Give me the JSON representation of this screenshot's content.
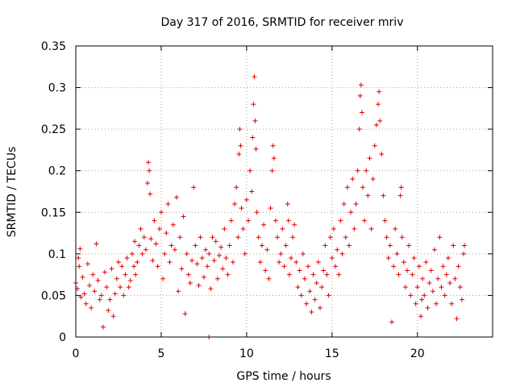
{
  "chart_data": {
    "type": "scatter",
    "title": "Day 317 of 2016, SRMTID for receiver mriv",
    "xlabel": "GPS time / hours",
    "ylabel": "SRMTID / TECUs",
    "xlim": [
      0,
      24.4
    ],
    "ylim": [
      0,
      0.35
    ],
    "x_ticks": [
      0,
      5,
      10,
      15,
      20
    ],
    "x_tick_labels": [
      "0",
      "5",
      "10",
      "15",
      "20"
    ],
    "y_ticks": [
      0,
      0.05,
      0.1,
      0.15,
      0.2,
      0.25,
      0.3,
      0.35
    ],
    "y_tick_labels": [
      "0",
      "0.05",
      "0.1",
      "0.15",
      "0.2",
      "0.25",
      "0.3",
      "0.35"
    ],
    "grid": true,
    "marker": "+",
    "color": "#e00000",
    "series": [
      {
        "name": "SRMTID",
        "points": [
          [
            0.0,
            0.065
          ],
          [
            0.1,
            0.058
          ],
          [
            0.2,
            0.085
          ],
          [
            0.25,
            0.106
          ],
          [
            0.3,
            0.048
          ],
          [
            0.4,
            0.072
          ],
          [
            0.5,
            0.052
          ],
          [
            0.6,
            0.04
          ],
          [
            0.7,
            0.088
          ],
          [
            0.8,
            0.062
          ],
          [
            0.9,
            0.035
          ],
          [
            1.0,
            0.075
          ],
          [
            1.1,
            0.055
          ],
          [
            1.2,
            0.112
          ],
          [
            1.3,
            0.068
          ],
          [
            1.4,
            0.045
          ],
          [
            1.5,
            0.05
          ],
          [
            1.6,
            0.012
          ],
          [
            1.7,
            0.078
          ],
          [
            1.8,
            0.06
          ],
          [
            1.9,
            0.032
          ],
          [
            2.0,
            0.045
          ],
          [
            2.1,
            0.082
          ],
          [
            2.2,
            0.025
          ],
          [
            2.3,
            0.052
          ],
          [
            2.4,
            0.07
          ],
          [
            2.5,
            0.09
          ],
          [
            2.6,
            0.06
          ],
          [
            2.7,
            0.085
          ],
          [
            2.8,
            0.05
          ],
          [
            2.9,
            0.075
          ],
          [
            3.0,
            0.095
          ],
          [
            3.1,
            0.06
          ],
          [
            3.2,
            0.068
          ],
          [
            3.3,
            0.1
          ],
          [
            3.4,
            0.085
          ],
          [
            3.5,
            0.075
          ],
          [
            3.6,
            0.09
          ],
          [
            3.7,
            0.11
          ],
          [
            3.8,
            0.13
          ],
          [
            3.9,
            0.1
          ],
          [
            4.0,
            0.12
          ],
          [
            4.1,
            0.105
          ],
          [
            4.2,
            0.185
          ],
          [
            4.25,
            0.21
          ],
          [
            4.3,
            0.2
          ],
          [
            4.35,
            0.172
          ],
          [
            4.4,
            0.118
          ],
          [
            4.5,
            0.092
          ],
          [
            4.6,
            0.14
          ],
          [
            4.7,
            0.112
          ],
          [
            4.8,
            0.085
          ],
          [
            4.9,
            0.13
          ],
          [
            5.0,
            0.15
          ],
          [
            5.1,
            0.07
          ],
          [
            5.2,
            0.1
          ],
          [
            5.3,
            0.125
          ],
          [
            5.4,
            0.16
          ],
          [
            5.5,
            0.09
          ],
          [
            5.6,
            0.11
          ],
          [
            5.7,
            0.135
          ],
          [
            5.8,
            0.105
          ],
          [
            5.9,
            0.168
          ],
          [
            6.0,
            0.055
          ],
          [
            6.1,
            0.12
          ],
          [
            6.2,
            0.082
          ],
          [
            6.3,
            0.145
          ],
          [
            6.4,
            0.028
          ],
          [
            6.5,
            0.1
          ],
          [
            6.6,
            0.075
          ],
          [
            6.7,
            0.065
          ],
          [
            6.8,
            0.092
          ],
          [
            6.9,
            0.18
          ],
          [
            7.0,
            0.11
          ],
          [
            7.1,
            0.088
          ],
          [
            7.2,
            0.062
          ],
          [
            7.3,
            0.12
          ],
          [
            7.4,
            0.095
          ],
          [
            7.5,
            0.072
          ],
          [
            7.6,
            0.105
          ],
          [
            7.7,
            0.085
          ],
          [
            7.8,
            0.1
          ],
          [
            7.9,
            0.058
          ],
          [
            8.0,
            0.12
          ],
          [
            8.1,
            0.092
          ],
          [
            8.2,
            0.115
          ],
          [
            8.3,
            0.07
          ],
          [
            8.4,
            0.098
          ],
          [
            8.5,
            0.108
          ],
          [
            8.6,
            0.082
          ],
          [
            8.7,
            0.13
          ],
          [
            8.8,
            0.095
          ],
          [
            8.9,
            0.075
          ],
          [
            9.0,
            0.11
          ],
          [
            9.1,
            0.14
          ],
          [
            9.2,
            0.09
          ],
          [
            9.3,
            0.16
          ],
          [
            9.4,
            0.18
          ],
          [
            9.5,
            0.12
          ],
          [
            9.55,
            0.22
          ],
          [
            9.6,
            0.25
          ],
          [
            9.65,
            0.23
          ],
          [
            9.7,
            0.155
          ],
          [
            9.8,
            0.13
          ],
          [
            9.9,
            0.1
          ],
          [
            10.0,
            0.165
          ],
          [
            10.1,
            0.14
          ],
          [
            10.2,
            0.2
          ],
          [
            10.3,
            0.175
          ],
          [
            10.35,
            0.24
          ],
          [
            10.4,
            0.28
          ],
          [
            10.45,
            0.313
          ],
          [
            10.5,
            0.26
          ],
          [
            10.55,
            0.226
          ],
          [
            10.6,
            0.15
          ],
          [
            10.7,
            0.12
          ],
          [
            10.8,
            0.09
          ],
          [
            10.9,
            0.11
          ],
          [
            11.0,
            0.135
          ],
          [
            11.1,
            0.08
          ],
          [
            11.2,
            0.105
          ],
          [
            11.3,
            0.07
          ],
          [
            11.4,
            0.155
          ],
          [
            11.5,
            0.2
          ],
          [
            11.55,
            0.23
          ],
          [
            11.6,
            0.215
          ],
          [
            11.7,
            0.14
          ],
          [
            11.8,
            0.12
          ],
          [
            11.9,
            0.09
          ],
          [
            12.0,
            0.1
          ],
          [
            12.1,
            0.13
          ],
          [
            12.2,
            0.085
          ],
          [
            12.3,
            0.11
          ],
          [
            12.4,
            0.16
          ],
          [
            12.5,
            0.075
          ],
          [
            12.6,
            0.095
          ],
          [
            12.7,
            0.12
          ],
          [
            12.8,
            0.135
          ],
          [
            12.9,
            0.09
          ],
          [
            13.0,
            0.06
          ],
          [
            13.1,
            0.08
          ],
          [
            13.2,
            0.05
          ],
          [
            13.3,
            0.1
          ],
          [
            13.4,
            0.07
          ],
          [
            13.5,
            0.04
          ],
          [
            13.6,
            0.085
          ],
          [
            13.7,
            0.055
          ],
          [
            13.8,
            0.03
          ],
          [
            13.9,
            0.075
          ],
          [
            14.0,
            0.045
          ],
          [
            14.1,
            0.065
          ],
          [
            14.2,
            0.09
          ],
          [
            14.3,
            0.035
          ],
          [
            14.4,
            0.06
          ],
          [
            14.5,
            0.08
          ],
          [
            14.6,
            0.11
          ],
          [
            14.7,
            0.075
          ],
          [
            14.8,
            0.05
          ],
          [
            14.9,
            0.12
          ],
          [
            15.0,
            0.095
          ],
          [
            15.1,
            0.13
          ],
          [
            15.2,
            0.085
          ],
          [
            15.3,
            0.105
          ],
          [
            15.4,
            0.075
          ],
          [
            15.5,
            0.14
          ],
          [
            15.6,
            0.1
          ],
          [
            15.7,
            0.16
          ],
          [
            15.8,
            0.12
          ],
          [
            15.9,
            0.18
          ],
          [
            16.0,
            0.11
          ],
          [
            16.1,
            0.15
          ],
          [
            16.2,
            0.19
          ],
          [
            16.3,
            0.13
          ],
          [
            16.4,
            0.16
          ],
          [
            16.5,
            0.2
          ],
          [
            16.6,
            0.25
          ],
          [
            16.65,
            0.29
          ],
          [
            16.7,
            0.303
          ],
          [
            16.75,
            0.27
          ],
          [
            16.8,
            0.18
          ],
          [
            16.9,
            0.14
          ],
          [
            17.0,
            0.2
          ],
          [
            17.1,
            0.17
          ],
          [
            17.2,
            0.215
          ],
          [
            17.3,
            0.13
          ],
          [
            17.4,
            0.19
          ],
          [
            17.5,
            0.23
          ],
          [
            17.6,
            0.255
          ],
          [
            17.7,
            0.28
          ],
          [
            17.75,
            0.295
          ],
          [
            17.8,
            0.26
          ],
          [
            17.9,
            0.22
          ],
          [
            18.0,
            0.17
          ],
          [
            18.1,
            0.14
          ],
          [
            18.2,
            0.12
          ],
          [
            18.3,
            0.095
          ],
          [
            18.4,
            0.11
          ],
          [
            18.5,
            0.018
          ],
          [
            18.6,
            0.085
          ],
          [
            18.7,
            0.13
          ],
          [
            18.8,
            0.1
          ],
          [
            18.9,
            0.075
          ],
          [
            19.0,
            0.17
          ],
          [
            19.05,
            0.18
          ],
          [
            19.1,
            0.12
          ],
          [
            19.2,
            0.09
          ],
          [
            19.3,
            0.06
          ],
          [
            19.4,
            0.08
          ],
          [
            19.5,
            0.11
          ],
          [
            19.6,
            0.05
          ],
          [
            19.7,
            0.075
          ],
          [
            19.8,
            0.095
          ],
          [
            19.9,
            0.04
          ],
          [
            20.0,
            0.06
          ],
          [
            20.1,
            0.085
          ],
          [
            20.2,
            0.025
          ],
          [
            20.3,
            0.07
          ],
          [
            20.4,
            0.05
          ],
          [
            20.5,
            0.09
          ],
          [
            20.6,
            0.035
          ],
          [
            20.7,
            0.065
          ],
          [
            20.8,
            0.08
          ],
          [
            20.9,
            0.055
          ],
          [
            21.0,
            0.105
          ],
          [
            21.1,
            0.04
          ],
          [
            21.2,
            0.07
          ],
          [
            21.3,
            0.12
          ],
          [
            21.4,
            0.06
          ],
          [
            21.5,
            0.085
          ],
          [
            21.6,
            0.05
          ],
          [
            21.7,
            0.075
          ],
          [
            21.8,
            0.095
          ],
          [
            21.9,
            0.065
          ],
          [
            22.0,
            0.04
          ],
          [
            22.1,
            0.11
          ],
          [
            22.2,
            0.07
          ],
          [
            22.3,
            0.022
          ],
          [
            22.4,
            0.085
          ],
          [
            22.5,
            0.06
          ],
          [
            22.6,
            0.045
          ],
          [
            22.7,
            0.1
          ],
          [
            22.75,
            0.11
          ],
          [
            7.8,
            0.0
          ],
          [
            0.15,
            0.095
          ],
          [
            3.45,
            0.115
          ],
          [
            12.45,
            0.14
          ],
          [
            20.25,
            0.045
          ]
        ]
      }
    ]
  }
}
